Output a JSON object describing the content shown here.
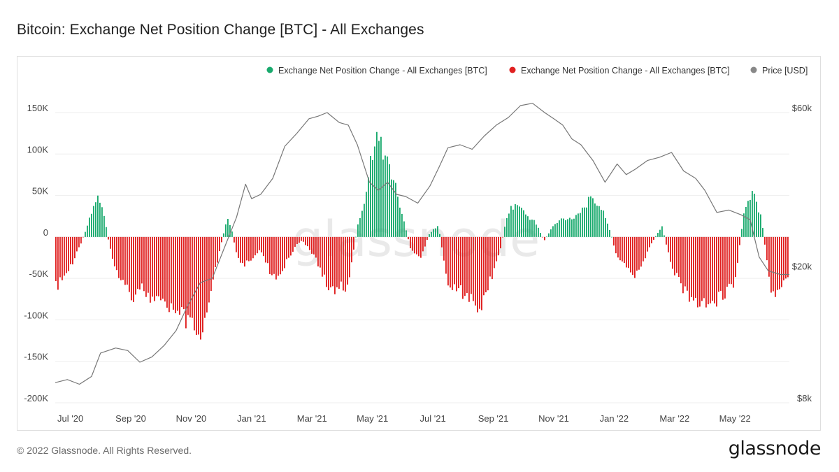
{
  "page": {
    "title": "Bitcoin: Exchange Net Position Change [BTC] - All Exchanges",
    "copyright": "© 2022 Glassnode. All Rights Reserved.",
    "logo": "glassnode",
    "watermark": "glassnode"
  },
  "colors": {
    "positive": "#1aaa6e",
    "negative": "#e02020",
    "price": "#777777"
  },
  "chart_data": {
    "type": "bar+line",
    "title": "Bitcoin: Exchange Net Position Change [BTC] - All Exchanges",
    "legend": [
      {
        "label": "Exchange Net Position Change - All Exchanges [BTC]",
        "color": "#1aaa6e"
      },
      {
        "label": "Exchange Net Position Change - All Exchanges [BTC]",
        "color": "#e02020"
      },
      {
        "label": "Price [USD]",
        "color": "#888888"
      }
    ],
    "legend_position": "top-right",
    "y_left": {
      "min": -200000,
      "max": 150000,
      "ticks": [
        {
          "value": 150000,
          "label": "150K"
        },
        {
          "value": 100000,
          "label": "100K"
        },
        {
          "value": 50000,
          "label": "50K"
        },
        {
          "value": 0,
          "label": "0"
        },
        {
          "value": -50000,
          "label": "-50K"
        },
        {
          "value": -100000,
          "label": "-100K"
        },
        {
          "value": -150000,
          "label": "-150K"
        },
        {
          "value": -200000,
          "label": "-200K"
        }
      ]
    },
    "y_right": {
      "scale": "log",
      "min": 8000,
      "max": 60000,
      "ticks": [
        {
          "value": 60000,
          "label": "$60k"
        },
        {
          "value": 20000,
          "label": "$20k"
        },
        {
          "value": 8000,
          "label": "$8k"
        }
      ]
    },
    "x_ticks": [
      {
        "month": 0.5,
        "label": "Jul '20"
      },
      {
        "month": 2.5,
        "label": "Sep '20"
      },
      {
        "month": 4.5,
        "label": "Nov '20"
      },
      {
        "month": 6.5,
        "label": "Jan '21"
      },
      {
        "month": 8.5,
        "label": "Mar '21"
      },
      {
        "month": 10.5,
        "label": "May '21"
      },
      {
        "month": 12.5,
        "label": "Jul '21"
      },
      {
        "month": 14.5,
        "label": "Sep '21"
      },
      {
        "month": 16.5,
        "label": "Nov '21"
      },
      {
        "month": 18.5,
        "label": "Jan '22"
      },
      {
        "month": 20.5,
        "label": "Mar '22"
      },
      {
        "month": 22.5,
        "label": "May '22"
      }
    ],
    "x_range_months": [
      0,
      24.3
    ],
    "net_position_change": {
      "month": [
        0.0,
        0.3,
        0.6,
        0.9,
        1.2,
        1.4,
        1.6,
        1.8,
        2.0,
        2.3,
        2.6,
        2.9,
        3.2,
        3.5,
        3.8,
        4.1,
        4.4,
        4.7,
        4.85,
        5.1,
        5.4,
        5.7,
        5.85,
        6.0,
        6.2,
        6.5,
        6.8,
        7.1,
        7.4,
        7.7,
        8.0,
        8.2,
        8.5,
        8.8,
        9.1,
        9.4,
        9.7,
        10.0,
        10.3,
        10.6,
        10.9,
        11.2,
        11.5,
        11.8,
        12.1,
        12.4,
        12.7,
        13.0,
        13.2,
        13.5,
        13.8,
        14.1,
        14.4,
        14.7,
        15.0,
        15.3,
        15.6,
        15.9,
        16.2,
        16.5,
        16.8,
        17.1,
        17.4,
        17.7,
        18.0,
        18.3,
        18.6,
        18.9,
        19.2,
        19.5,
        19.8,
        20.1,
        20.4,
        20.7,
        21.0,
        21.3,
        21.6,
        21.9,
        22.2,
        22.5,
        22.8,
        23.1,
        23.4,
        23.7,
        24.0,
        24.3
      ],
      "btc": [
        -70000,
        -55000,
        -35000,
        -5000,
        30000,
        55000,
        35000,
        -10000,
        -40000,
        -65000,
        -80000,
        -70000,
        -85000,
        -90000,
        -100000,
        -95000,
        -120000,
        -125000,
        -135000,
        -80000,
        -30000,
        25000,
        10000,
        -20000,
        -40000,
        -30000,
        -15000,
        -45000,
        -55000,
        -30000,
        -10000,
        -5000,
        -20000,
        -45000,
        -75000,
        -65000,
        -70000,
        10000,
        60000,
        140000,
        115000,
        80000,
        30000,
        -20000,
        -30000,
        5000,
        15000,
        -70000,
        -65000,
        -75000,
        -85000,
        -100000,
        -60000,
        -25000,
        35000,
        45000,
        30000,
        20000,
        -5000,
        15000,
        25000,
        25000,
        35000,
        50000,
        45000,
        20000,
        -25000,
        -40000,
        -55000,
        -30000,
        -5000,
        15000,
        -40000,
        -65000,
        -80000,
        -90000,
        -95000,
        -85000,
        -75000,
        -65000,
        30000,
        60000,
        25000,
        -80000,
        -70000,
        -55000
      ]
    },
    "price_usd": {
      "month": [
        0.0,
        0.4,
        0.8,
        1.2,
        1.5,
        2.0,
        2.4,
        2.8,
        3.2,
        3.6,
        4.0,
        4.4,
        4.8,
        5.2,
        5.6,
        6.0,
        6.3,
        6.5,
        6.8,
        7.2,
        7.6,
        8.0,
        8.4,
        8.7,
        9.0,
        9.4,
        9.7,
        10.0,
        10.4,
        10.7,
        11.0,
        11.3,
        11.6,
        12.0,
        12.4,
        12.7,
        13.0,
        13.4,
        13.8,
        14.2,
        14.6,
        15.0,
        15.4,
        15.8,
        16.2,
        16.5,
        16.8,
        17.1,
        17.4,
        17.8,
        18.2,
        18.6,
        18.9,
        19.2,
        19.6,
        20.0,
        20.4,
        20.8,
        21.2,
        21.5,
        21.9,
        22.3,
        22.7,
        23.0,
        23.3,
        23.6,
        24.0,
        24.3
      ],
      "usd": [
        9200,
        9400,
        9100,
        9600,
        11300,
        11700,
        11500,
        10600,
        11000,
        11900,
        13200,
        15800,
        18400,
        19000,
        23500,
        29000,
        36500,
        33000,
        34000,
        38000,
        47500,
        52000,
        57500,
        58500,
        60000,
        56000,
        55000,
        48000,
        37000,
        35000,
        37000,
        34000,
        33500,
        32000,
        36000,
        41000,
        47000,
        48000,
        46500,
        51000,
        55000,
        58000,
        63000,
        64000,
        60000,
        57500,
        55000,
        50000,
        48000,
        43000,
        37000,
        42000,
        39000,
        40500,
        43000,
        44000,
        45500,
        40000,
        38000,
        35000,
        30000,
        30500,
        29500,
        28500,
        22000,
        20000,
        19500,
        19500
      ]
    }
  }
}
